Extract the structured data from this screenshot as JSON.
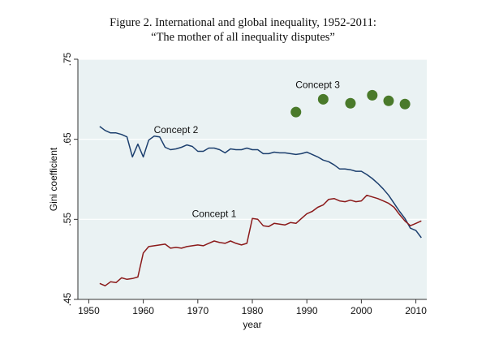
{
  "figure": {
    "title_line1": "Figure 2. International and global inequality, 1952-2011:",
    "title_line2": "“The mother of all inequality disputes”"
  },
  "chart_data": {
    "type": "line",
    "xlabel": "year",
    "ylabel": "Gini coefficient",
    "xlim": [
      1948,
      2012
    ],
    "ylim": [
      0.45,
      0.75
    ],
    "x_ticks": [
      1950,
      1960,
      1970,
      1980,
      1990,
      2000,
      2010
    ],
    "y_ticks": [
      0.45,
      0.55,
      0.65,
      0.75
    ],
    "y_tick_labels": [
      ".45",
      ".55",
      ".65",
      ".75"
    ],
    "grid": "horizontal",
    "legend": "none",
    "colors": {
      "concept1": "#8b1a1a",
      "concept2": "#1c3f6e",
      "concept3": "#4a7a2a",
      "plot_bg": "#eaf2f3",
      "outer_bg": "#ffffff"
    },
    "series": [
      {
        "name": "Concept 2",
        "type": "line",
        "label_at": [
          1966,
          0.658
        ],
        "x": [
          1952,
          1953,
          1954,
          1955,
          1956,
          1957,
          1958,
          1959,
          1960,
          1961,
          1962,
          1963,
          1964,
          1965,
          1966,
          1967,
          1968,
          1969,
          1970,
          1971,
          1972,
          1973,
          1974,
          1975,
          1976,
          1977,
          1978,
          1979,
          1980,
          1981,
          1982,
          1983,
          1984,
          1985,
          1986,
          1987,
          1988,
          1989,
          1990,
          1991,
          1992,
          1993,
          1994,
          1995,
          1996,
          1997,
          1998,
          1999,
          2000,
          2001,
          2002,
          2003,
          2004,
          2005,
          2006,
          2007,
          2008,
          2009,
          2010,
          2011
        ],
        "values": [
          0.666,
          0.661,
          0.658,
          0.658,
          0.656,
          0.653,
          0.628,
          0.644,
          0.628,
          0.649,
          0.654,
          0.653,
          0.64,
          0.637,
          0.638,
          0.64,
          0.643,
          0.641,
          0.635,
          0.635,
          0.639,
          0.639,
          0.637,
          0.633,
          0.638,
          0.637,
          0.637,
          0.639,
          0.637,
          0.637,
          0.632,
          0.632,
          0.634,
          0.633,
          0.633,
          0.632,
          0.631,
          0.632,
          0.634,
          0.631,
          0.628,
          0.624,
          0.622,
          0.618,
          0.613,
          0.613,
          0.612,
          0.61,
          0.61,
          0.606,
          0.601,
          0.595,
          0.588,
          0.58,
          0.57,
          0.56,
          0.551,
          0.539,
          0.536,
          0.527
        ]
      },
      {
        "name": "Concept 1",
        "type": "line",
        "label_at": [
          1973,
          0.553
        ],
        "x": [
          1952,
          1953,
          1954,
          1955,
          1956,
          1957,
          1958,
          1959,
          1960,
          1961,
          1962,
          1963,
          1964,
          1965,
          1966,
          1967,
          1968,
          1969,
          1970,
          1971,
          1972,
          1973,
          1974,
          1975,
          1976,
          1977,
          1978,
          1979,
          1980,
          1981,
          1982,
          1983,
          1984,
          1985,
          1986,
          1987,
          1988,
          1989,
          1990,
          1991,
          1992,
          1993,
          1994,
          1995,
          1996,
          1997,
          1998,
          1999,
          2000,
          2001,
          2002,
          2003,
          2004,
          2005,
          2006,
          2007,
          2008,
          2009,
          2010,
          2011
        ],
        "values": [
          0.47,
          0.467,
          0.472,
          0.471,
          0.477,
          0.475,
          0.476,
          0.478,
          0.508,
          0.516,
          0.517,
          0.518,
          0.519,
          0.514,
          0.515,
          0.514,
          0.516,
          0.517,
          0.518,
          0.517,
          0.52,
          0.523,
          0.521,
          0.52,
          0.523,
          0.52,
          0.518,
          0.52,
          0.551,
          0.55,
          0.542,
          0.541,
          0.545,
          0.544,
          0.543,
          0.546,
          0.545,
          0.551,
          0.557,
          0.56,
          0.565,
          0.568,
          0.575,
          0.576,
          0.573,
          0.572,
          0.574,
          0.572,
          0.573,
          0.58,
          0.578,
          0.576,
          0.573,
          0.57,
          0.565,
          0.556,
          0.548,
          0.542,
          0.545,
          0.548
        ]
      },
      {
        "name": "Concept 3",
        "type": "scatter",
        "label_at": [
          1992,
          0.714
        ],
        "x": [
          1988,
          1993,
          1998,
          2002,
          2005,
          2008
        ],
        "values": [
          0.684,
          0.7,
          0.695,
          0.705,
          0.698,
          0.694
        ]
      }
    ]
  }
}
